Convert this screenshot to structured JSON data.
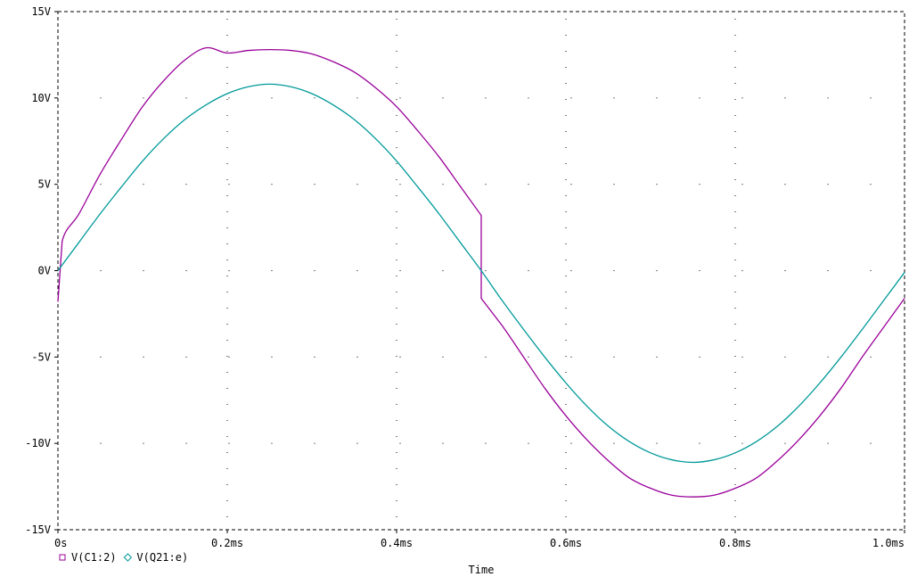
{
  "chart_data": {
    "type": "line",
    "title": "",
    "xlabel": "Time",
    "ylabel": "",
    "xlim": [
      0,
      1.0
    ],
    "ylim": [
      -15,
      15
    ],
    "x_unit": "ms",
    "y_unit": "V",
    "x_ticks": [
      0,
      0.2,
      0.4,
      0.6,
      0.8,
      1.0
    ],
    "x_tick_labels": [
      "0s",
      "0.2ms",
      "0.4ms",
      "0.6ms",
      "0.8ms",
      "1.0ms"
    ],
    "y_ticks": [
      15,
      10,
      5,
      0,
      -5,
      -10,
      -15
    ],
    "y_tick_labels": [
      "15V",
      "10V",
      "5V",
      "0V",
      "-5V",
      "-10V",
      "-15V"
    ],
    "grid": "dotted",
    "legend_position": "bottom-left",
    "series": [
      {
        "name": "V(C1:2)",
        "color": "#990099",
        "marker": "square",
        "points": [
          [
            0.0,
            -1.8
          ],
          [
            0.005,
            1.7
          ],
          [
            0.025,
            3.3
          ],
          [
            0.05,
            5.6
          ],
          [
            0.075,
            7.6
          ],
          [
            0.1,
            9.5
          ],
          [
            0.125,
            11.0
          ],
          [
            0.15,
            12.2
          ],
          [
            0.175,
            12.9
          ],
          [
            0.2,
            12.6
          ],
          [
            0.225,
            12.75
          ],
          [
            0.25,
            12.8
          ],
          [
            0.275,
            12.75
          ],
          [
            0.3,
            12.55
          ],
          [
            0.325,
            12.1
          ],
          [
            0.35,
            11.5
          ],
          [
            0.375,
            10.6
          ],
          [
            0.4,
            9.5
          ],
          [
            0.425,
            8.1
          ],
          [
            0.45,
            6.6
          ],
          [
            0.475,
            4.9
          ],
          [
            0.5,
            3.2
          ],
          [
            0.5,
            1.4
          ],
          [
            0.5,
            -1.6
          ],
          [
            0.525,
            -3.2
          ],
          [
            0.55,
            -5.0
          ],
          [
            0.575,
            -6.8
          ],
          [
            0.6,
            -8.4
          ],
          [
            0.625,
            -9.8
          ],
          [
            0.65,
            -11.0
          ],
          [
            0.675,
            -12.0
          ],
          [
            0.7,
            -12.6
          ],
          [
            0.725,
            -13.0
          ],
          [
            0.75,
            -13.1
          ],
          [
            0.775,
            -13.0
          ],
          [
            0.8,
            -12.6
          ],
          [
            0.825,
            -12.0
          ],
          [
            0.85,
            -11.0
          ],
          [
            0.875,
            -9.8
          ],
          [
            0.9,
            -8.4
          ],
          [
            0.925,
            -6.8
          ],
          [
            0.95,
            -5.0
          ],
          [
            0.975,
            -3.3
          ],
          [
            1.0,
            -1.6
          ]
        ]
      },
      {
        "name": "V(Q21:e)",
        "color": "#009999",
        "marker": "diamond",
        "points": [
          [
            0.0,
            0.0
          ],
          [
            0.025,
            1.65
          ],
          [
            0.05,
            3.3
          ],
          [
            0.075,
            4.85
          ],
          [
            0.1,
            6.35
          ],
          [
            0.125,
            7.65
          ],
          [
            0.15,
            8.75
          ],
          [
            0.175,
            9.6
          ],
          [
            0.2,
            10.25
          ],
          [
            0.225,
            10.65
          ],
          [
            0.25,
            10.8
          ],
          [
            0.275,
            10.65
          ],
          [
            0.3,
            10.25
          ],
          [
            0.325,
            9.6
          ],
          [
            0.35,
            8.75
          ],
          [
            0.375,
            7.65
          ],
          [
            0.4,
            6.35
          ],
          [
            0.425,
            4.85
          ],
          [
            0.45,
            3.3
          ],
          [
            0.475,
            1.65
          ],
          [
            0.5,
            0.0
          ],
          [
            0.525,
            -1.75
          ],
          [
            0.55,
            -3.4
          ],
          [
            0.575,
            -5.0
          ],
          [
            0.6,
            -6.5
          ],
          [
            0.625,
            -7.85
          ],
          [
            0.65,
            -9.0
          ],
          [
            0.675,
            -9.9
          ],
          [
            0.7,
            -10.55
          ],
          [
            0.725,
            -10.95
          ],
          [
            0.75,
            -11.1
          ],
          [
            0.775,
            -10.95
          ],
          [
            0.8,
            -10.55
          ],
          [
            0.825,
            -9.9
          ],
          [
            0.85,
            -9.0
          ],
          [
            0.875,
            -7.85
          ],
          [
            0.9,
            -6.5
          ],
          [
            0.925,
            -5.0
          ],
          [
            0.95,
            -3.4
          ],
          [
            0.975,
            -1.75
          ],
          [
            1.0,
            -0.1
          ]
        ]
      }
    ]
  }
}
